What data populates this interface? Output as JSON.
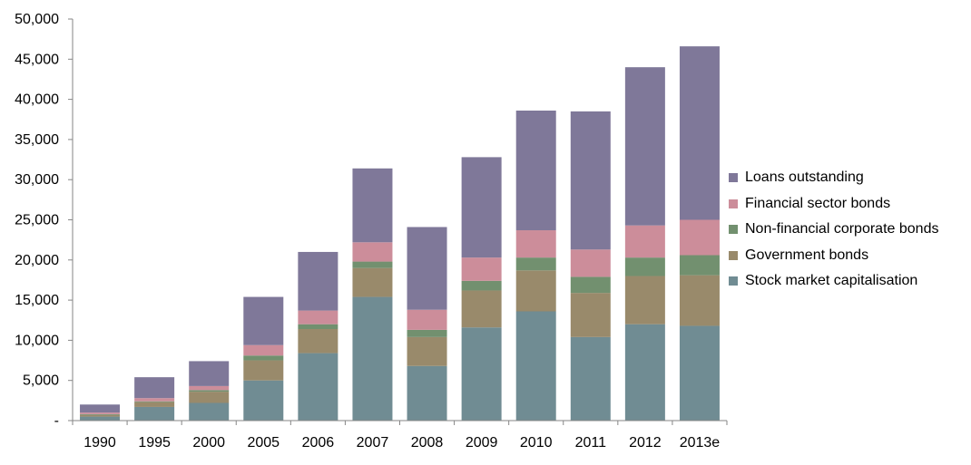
{
  "chart_data": {
    "type": "bar",
    "stacked": true,
    "categories": [
      "1990",
      "1995",
      "2000",
      "2005",
      "2006",
      "2007",
      "2008",
      "2009",
      "2010",
      "2011",
      "2012",
      "2013e"
    ],
    "ylim": [
      0,
      50000
    ],
    "yticks": [
      0,
      5000,
      10000,
      15000,
      20000,
      25000,
      30000,
      35000,
      40000,
      45000,
      50000
    ],
    "ytick_labels": [
      "-",
      "5,000",
      "10,000",
      "15,000",
      "20,000",
      "25,000",
      "30,000",
      "35,000",
      "40,000",
      "45,000",
      "50,000"
    ],
    "grid": false,
    "legend_position": "right",
    "series": [
      {
        "name": "Stock market capitalisation",
        "color": "#708c93",
        "values": [
          500,
          1700,
          2200,
          5000,
          8400,
          15400,
          6800,
          11600,
          13600,
          10400,
          12000,
          11800
        ]
      },
      {
        "name": "Government bonds",
        "color": "#998a6b",
        "values": [
          200,
          600,
          1400,
          2500,
          3000,
          3600,
          3600,
          4600,
          5100,
          5500,
          6000,
          6300
        ]
      },
      {
        "name": "Non-financial corporate bonds",
        "color": "#72906f",
        "values": [
          100,
          100,
          200,
          600,
          600,
          800,
          900,
          1200,
          1600,
          2000,
          2300,
          2500
        ]
      },
      {
        "name": "Financial sector bonds",
        "color": "#cc8d9a",
        "values": [
          200,
          400,
          500,
          1300,
          1700,
          2400,
          2500,
          2900,
          3400,
          3400,
          4000,
          4400
        ]
      },
      {
        "name": "Loans outstanding",
        "color": "#7f7899",
        "values": [
          1000,
          2600,
          3100,
          6000,
          7300,
          9200,
          10300,
          12500,
          14900,
          17200,
          19700,
          21600
        ]
      }
    ]
  }
}
